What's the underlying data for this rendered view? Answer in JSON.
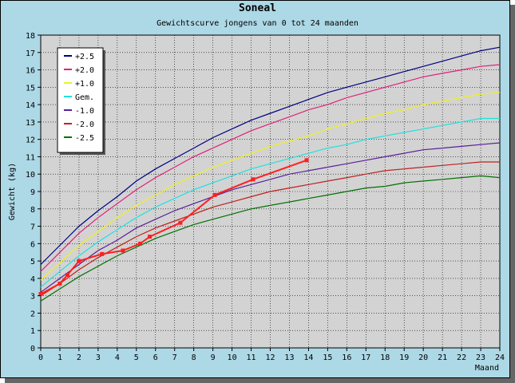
{
  "chart_data": {
    "type": "line",
    "title": "Soneal",
    "subtitle": "Gewichtscurve jongens van 0 tot 24 maanden",
    "xlabel": "Maand",
    "ylabel": "Gewicht (kg)",
    "xlim": [
      0,
      24
    ],
    "ylim": [
      0,
      18
    ],
    "x_ticks": [
      0,
      1,
      2,
      3,
      4,
      5,
      6,
      7,
      8,
      9,
      10,
      11,
      12,
      13,
      14,
      15,
      16,
      17,
      18,
      19,
      20,
      21,
      22,
      23,
      24
    ],
    "y_ticks": [
      0,
      1,
      2,
      3,
      4,
      5,
      6,
      7,
      8,
      9,
      10,
      11,
      12,
      13,
      14,
      15,
      16,
      17,
      18
    ],
    "grid": true,
    "legend_position": "top-left",
    "x": [
      0,
      1,
      2,
      3,
      4,
      5,
      6,
      7,
      8,
      9,
      10,
      11,
      12,
      13,
      14,
      15,
      16,
      17,
      18,
      19,
      20,
      21,
      22,
      23,
      24
    ],
    "series": [
      {
        "name": "+2.5",
        "color": "#000080",
        "values": [
          4.8,
          5.9,
          7.0,
          7.9,
          8.7,
          9.6,
          10.3,
          10.9,
          11.5,
          12.1,
          12.6,
          13.1,
          13.5,
          13.9,
          14.3,
          14.7,
          15.0,
          15.3,
          15.6,
          15.9,
          16.2,
          16.5,
          16.8,
          17.1,
          17.3
        ]
      },
      {
        "name": "+2.0",
        "color": "#e0207a",
        "values": [
          4.4,
          5.5,
          6.6,
          7.5,
          8.3,
          9.1,
          9.8,
          10.4,
          11.0,
          11.5,
          12.0,
          12.5,
          12.9,
          13.3,
          13.7,
          14.0,
          14.4,
          14.7,
          15.0,
          15.3,
          15.6,
          15.8,
          16.0,
          16.2,
          16.3
        ]
      },
      {
        "name": "+1.0",
        "color": "#f0f020",
        "values": [
          3.9,
          4.9,
          5.9,
          6.7,
          7.5,
          8.2,
          8.8,
          9.4,
          9.9,
          10.4,
          10.8,
          11.2,
          11.6,
          11.9,
          12.2,
          12.6,
          12.9,
          13.2,
          13.5,
          13.7,
          14.0,
          14.2,
          14.4,
          14.6,
          14.7
        ]
      },
      {
        "name": "Gem.",
        "color": "#20e0e0",
        "values": [
          3.5,
          4.4,
          5.3,
          6.1,
          6.8,
          7.5,
          8.1,
          8.6,
          9.1,
          9.5,
          9.9,
          10.3,
          10.6,
          10.9,
          11.2,
          11.5,
          11.7,
          12.0,
          12.2,
          12.4,
          12.6,
          12.8,
          13.0,
          13.2,
          13.2
        ]
      },
      {
        "name": "-1.0",
        "color": "#5a1f9a",
        "values": [
          3.2,
          4.0,
          4.8,
          5.6,
          6.2,
          6.9,
          7.4,
          7.9,
          8.3,
          8.7,
          9.1,
          9.4,
          9.7,
          10.0,
          10.2,
          10.4,
          10.6,
          10.8,
          11.0,
          11.2,
          11.4,
          11.5,
          11.6,
          11.7,
          11.8
        ]
      },
      {
        "name": "-2.0",
        "color": "#c02020",
        "values": [
          3.0,
          3.7,
          4.5,
          5.2,
          5.8,
          6.4,
          6.9,
          7.3,
          7.7,
          8.1,
          8.4,
          8.7,
          9.0,
          9.2,
          9.4,
          9.6,
          9.8,
          10.0,
          10.2,
          10.3,
          10.4,
          10.5,
          10.6,
          10.7,
          10.7
        ]
      },
      {
        "name": "-2.5",
        "color": "#007000",
        "values": [
          2.7,
          3.4,
          4.1,
          4.7,
          5.3,
          5.8,
          6.3,
          6.7,
          7.1,
          7.4,
          7.7,
          8.0,
          8.2,
          8.4,
          8.6,
          8.8,
          9.0,
          9.2,
          9.3,
          9.5,
          9.6,
          9.7,
          9.8,
          9.9,
          9.8
        ]
      }
    ],
    "measurements": {
      "color": "#ff2020",
      "x": [
        0,
        1,
        1.4,
        2,
        3.2,
        4.3,
        5.2,
        5.7,
        7.3,
        9.1,
        11.1,
        13.9
      ],
      "y": [
        3.1,
        3.7,
        4.2,
        5.0,
        5.4,
        5.6,
        6.0,
        6.4,
        7.2,
        8.8,
        9.7,
        10.8
      ]
    }
  }
}
